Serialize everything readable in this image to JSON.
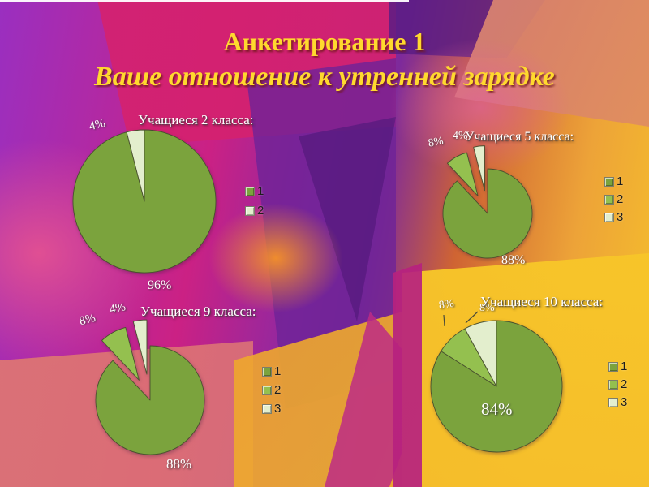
{
  "slide": {
    "title_line1": "Анкетирование 1",
    "title_line2": "Ваше отношение к утренней зарядке",
    "title_color": "#ffd92e"
  },
  "chart_data": [
    {
      "type": "pie",
      "title": "Учащиеся  2 класса:",
      "categories": [
        "1",
        "2"
      ],
      "values": [
        96,
        4
      ],
      "slice_labels": [
        "96%",
        "4%"
      ],
      "colors": [
        "#7ba33d",
        "#e3eecd"
      ],
      "explode": [
        0,
        0
      ],
      "legend": [
        "1",
        "2"
      ],
      "legend_position": "right"
    },
    {
      "type": "pie",
      "title": "Учащиеся 5 класса:",
      "categories": [
        "1",
        "2",
        "3"
      ],
      "values": [
        88,
        8,
        4
      ],
      "slice_labels": [
        "88%",
        "8%",
        "4%"
      ],
      "colors": [
        "#7ba33d",
        "#94c04f",
        "#e3eecd"
      ],
      "explode": [
        0,
        0.45,
        0.52
      ],
      "legend": [
        "1",
        "2",
        "3"
      ],
      "legend_position": "right"
    },
    {
      "type": "pie",
      "title": "Учащиеся 9 класса:",
      "categories": [
        "1",
        "2",
        "3"
      ],
      "values": [
        88,
        8,
        4
      ],
      "slice_labels": [
        "88%",
        "8%",
        "4%"
      ],
      "colors": [
        "#7ba33d",
        "#94c04f",
        "#e3eecd"
      ],
      "explode": [
        0,
        0.42,
        0.48
      ],
      "legend": [
        "1",
        "2",
        "3"
      ],
      "legend_position": "right"
    },
    {
      "type": "pie",
      "title": "Учащиеся 10 класса:",
      "categories": [
        "1",
        "2",
        "3"
      ],
      "values": [
        84,
        8,
        8
      ],
      "slice_labels": [
        "84%",
        "8%",
        "8%"
      ],
      "colors": [
        "#7ba33d",
        "#94c04f",
        "#e3eecd"
      ],
      "explode": [
        0,
        0,
        0
      ],
      "legend": [
        "1",
        "2",
        "3"
      ],
      "legend_position": "right"
    }
  ]
}
